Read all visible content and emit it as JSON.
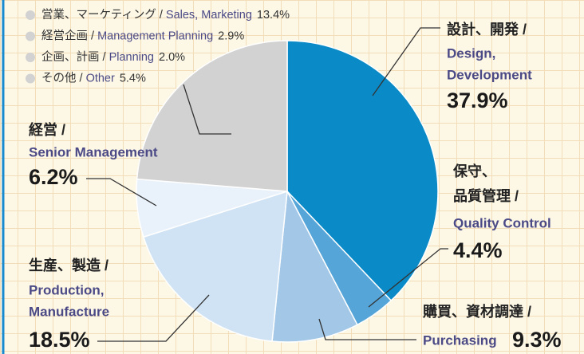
{
  "chart_data": {
    "type": "pie",
    "categories": [
      {
        "ja": [
          "設計、開発 /"
        ],
        "en": [
          "Design,",
          "Development"
        ]
      },
      {
        "ja": [
          "保守、",
          "品質管理 /"
        ],
        "en": [
          "Quality Control"
        ]
      },
      {
        "ja": [
          "購買、資材調達 /"
        ],
        "en": [
          "Purchasing"
        ]
      },
      {
        "ja": [
          "生産、製造 /"
        ],
        "en": [
          "Production,",
          "Manufacture"
        ]
      },
      {
        "ja": [
          "経営 /"
        ],
        "en": [
          "Senior Management"
        ]
      }
    ],
    "values": [
      37.9,
      4.4,
      9.3,
      18.5,
      6.2
    ],
    "value_labels": [
      "37.9%",
      "4.4%",
      "9.3%",
      "18.5%",
      "6.2%"
    ],
    "colors": [
      "#0a8ac6",
      "#55a5d8",
      "#a2c7e7",
      "#d0e3f4",
      "#e9f2fb"
    ],
    "other": {
      "color": "#d2d2d2",
      "items": [
        {
          "ja": "営業、マーケティング /",
          "en": "Sales, Marketing",
          "value": 13.4,
          "value_label": "13.4%"
        },
        {
          "ja": "経営企画 /",
          "en": "Management Planning",
          "value": 2.9,
          "value_label": "2.9%"
        },
        {
          "ja": "企画、計画 /",
          "en": "Planning",
          "value": 2.0,
          "value_label": "2.0%"
        },
        {
          "ja": "その他 /",
          "en": "Other",
          "value": 5.4,
          "value_label": "5.4%"
        }
      ]
    }
  }
}
